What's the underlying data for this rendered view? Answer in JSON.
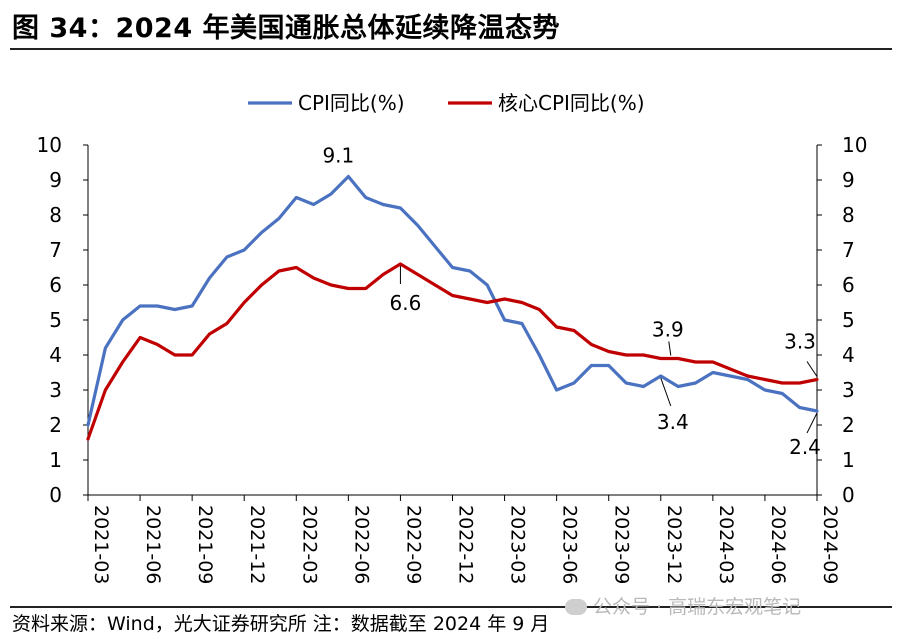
{
  "title": "图 34：2024 年美国通胀总体延续降温态势",
  "footer": {
    "source": "资料来源：Wind，光大证券研究所  注：数据截至 2024 年 9 月",
    "watermark": "公众号 · 高瑞东宏观笔记"
  },
  "chart_data": {
    "type": "line",
    "title": "",
    "xlabel": "",
    "ylabel": "",
    "ylim": [
      0,
      10
    ],
    "y2lim": [
      0,
      10
    ],
    "yticks": [
      "0",
      "1",
      "2",
      "3",
      "4",
      "5",
      "6",
      "7",
      "8",
      "9",
      "10"
    ],
    "legend_position": "top-center",
    "x": [
      "2021-03",
      "2021-04",
      "2021-05",
      "2021-06",
      "2021-07",
      "2021-08",
      "2021-09",
      "2021-10",
      "2021-11",
      "2021-12",
      "2022-01",
      "2022-02",
      "2022-03",
      "2022-04",
      "2022-05",
      "2022-06",
      "2022-07",
      "2022-08",
      "2022-09",
      "2022-10",
      "2022-11",
      "2022-12",
      "2023-01",
      "2023-02",
      "2023-03",
      "2023-04",
      "2023-05",
      "2023-06",
      "2023-07",
      "2023-08",
      "2023-09",
      "2023-10",
      "2023-11",
      "2023-12",
      "2024-01",
      "2024-02",
      "2024-03",
      "2024-04",
      "2024-05",
      "2024-06",
      "2024-07",
      "2024-08",
      "2024-09"
    ],
    "xtick_labels": [
      "2021-03",
      "2021-06",
      "2021-09",
      "2021-12",
      "2022-03",
      "2022-06",
      "2022-09",
      "2022-12",
      "2023-03",
      "2023-06",
      "2023-09",
      "2023-12",
      "2024-03",
      "2024-06",
      "2024-09"
    ],
    "series": [
      {
        "name": "CPI同比(%)",
        "color": "#4a72c0",
        "values": [
          2.0,
          4.2,
          5.0,
          5.4,
          5.4,
          5.3,
          5.4,
          6.2,
          6.8,
          7.0,
          7.5,
          7.9,
          8.5,
          8.3,
          8.6,
          9.1,
          8.5,
          8.3,
          8.2,
          7.7,
          7.1,
          6.5,
          6.4,
          6.0,
          5.0,
          4.9,
          4.0,
          3.0,
          3.2,
          3.7,
          3.7,
          3.2,
          3.1,
          3.4,
          3.1,
          3.2,
          3.5,
          3.4,
          3.3,
          3.0,
          2.9,
          2.5,
          2.4
        ]
      },
      {
        "name": "核心CPI同比(%)",
        "color": "#c00000",
        "values": [
          1.6,
          3.0,
          3.8,
          4.5,
          4.3,
          4.0,
          4.0,
          4.6,
          4.9,
          5.5,
          6.0,
          6.4,
          6.5,
          6.2,
          6.0,
          5.9,
          5.9,
          6.3,
          6.6,
          6.3,
          6.0,
          5.7,
          5.6,
          5.5,
          5.6,
          5.5,
          5.3,
          4.8,
          4.7,
          4.3,
          4.1,
          4.0,
          4.0,
          3.9,
          3.9,
          3.8,
          3.8,
          3.6,
          3.4,
          3.3,
          3.2,
          3.2,
          3.3
        ]
      }
    ],
    "annotations": [
      "9.1",
      "6.6",
      "3.9",
      "3.4",
      "3.3",
      "2.4"
    ]
  }
}
